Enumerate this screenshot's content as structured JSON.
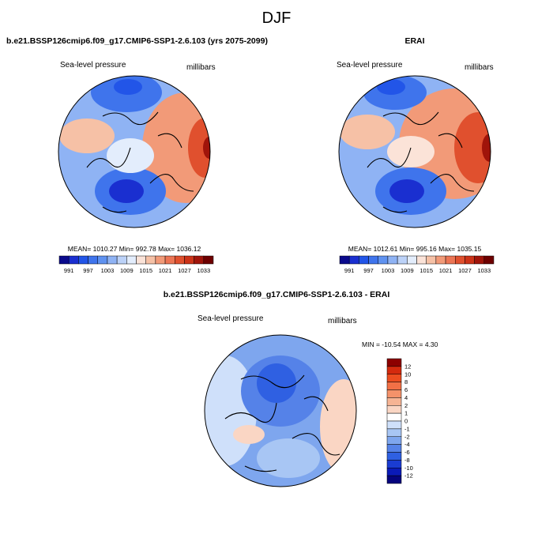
{
  "figure": {
    "title": "DJF"
  },
  "panels": {
    "model": {
      "title": "b.e21.BSSP126cmip6.f09_g17.CMIP6-SSP1-2.6.103 (yrs 2075-2099)",
      "variable": "Sea-level pressure",
      "units": "millibars",
      "stats": "MEAN= 1010.27  Min= 992.78  Max= 1036.12"
    },
    "obs": {
      "title": "ERAI",
      "variable": "Sea-level pressure",
      "units": "millibars",
      "stats": "MEAN= 1012.61  Min= 995.16  Max= 1035.15"
    },
    "diff": {
      "title": "b.e21.BSSP126cmip6.f09_g17.CMIP6-SSP1-2.6.103 - ERAI",
      "variable": "Sea-level pressure",
      "units": "millibars",
      "stats": "MIN = -10.54 MAX =   4.30"
    }
  },
  "chart_data": [
    {
      "type": "heatmap",
      "projection": "north polar stereographic",
      "title": "b.e21.BSSP126cmip6.f09_g17.CMIP6-SSP1-2.6.103 (yrs 2075-2099)",
      "variable": "Sea-level pressure",
      "units": "millibars",
      "mean": 1010.27,
      "min": 992.78,
      "max": 1036.12,
      "colorbar": {
        "orientation": "horizontal",
        "tick_labels": [
          "991",
          "997",
          "1003",
          "1009",
          "1015",
          "1021",
          "1027",
          "1033"
        ],
        "colors": [
          "#0a0a8c",
          "#1a2fd0",
          "#2255e8",
          "#3f74ec",
          "#5f92f0",
          "#8fb3f4",
          "#bcd2f8",
          "#e3edfc",
          "#fbe3d8",
          "#f6c1a6",
          "#f29a78",
          "#ec7554",
          "#e0502e",
          "#cc3318",
          "#a0140a",
          "#6e0000"
        ]
      }
    },
    {
      "type": "heatmap",
      "projection": "north polar stereographic",
      "title": "ERAI",
      "variable": "Sea-level pressure",
      "units": "millibars",
      "mean": 1012.61,
      "min": 995.16,
      "max": 1035.15,
      "colorbar": {
        "orientation": "horizontal",
        "tick_labels": [
          "991",
          "997",
          "1003",
          "1009",
          "1015",
          "1021",
          "1027",
          "1033"
        ],
        "colors": [
          "#0a0a8c",
          "#1a2fd0",
          "#2255e8",
          "#3f74ec",
          "#5f92f0",
          "#8fb3f4",
          "#bcd2f8",
          "#e3edfc",
          "#fbe3d8",
          "#f6c1a6",
          "#f29a78",
          "#ec7554",
          "#e0502e",
          "#cc3318",
          "#a0140a",
          "#6e0000"
        ]
      }
    },
    {
      "type": "heatmap",
      "projection": "north polar stereographic",
      "title": "b.e21.BSSP126cmip6.f09_g17.CMIP6-SSP1-2.6.103 - ERAI",
      "variable": "Sea-level pressure",
      "units": "millibars",
      "min": -10.54,
      "max": 4.3,
      "colorbar": {
        "orientation": "vertical",
        "tick_labels": [
          "12",
          "10",
          "8",
          "6",
          "4",
          "2",
          "1",
          "0",
          "-1",
          "-2",
          "-4",
          "-6",
          "-8",
          "-10",
          "-12"
        ],
        "colors": [
          "#8c0000",
          "#d42a0e",
          "#ec4d20",
          "#f27046",
          "#f4926a",
          "#f6b494",
          "#fad6c4",
          "#ffffff",
          "#cfe0fa",
          "#a8c6f4",
          "#7ea6ee",
          "#5582e8",
          "#2f60e2",
          "#1a3cd2",
          "#0a1ab8",
          "#05047e"
        ]
      }
    }
  ]
}
